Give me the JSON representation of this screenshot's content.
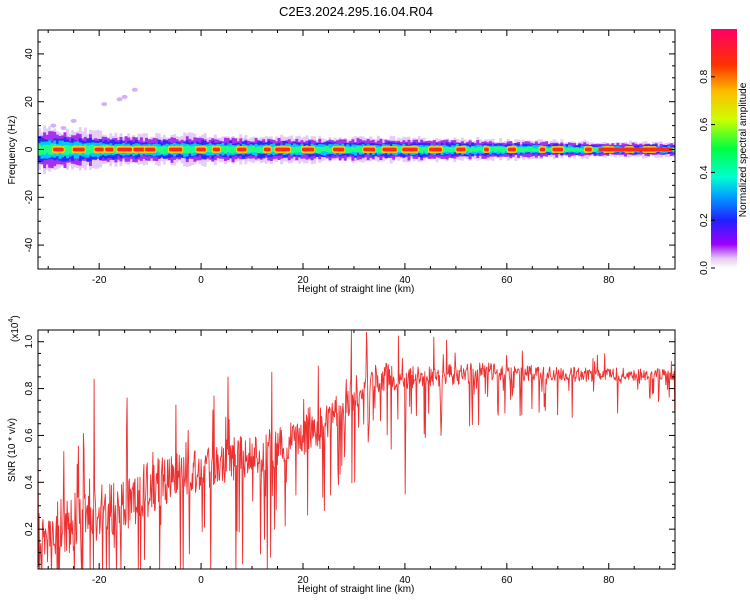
{
  "title": "C2E3.2024.295.16.04.R04",
  "colorbar": {
    "label": "Normalized spectral amplitude",
    "ticks": [
      "0.0",
      "0.2",
      "0.4",
      "0.6",
      "0.8"
    ],
    "tick_values": [
      0.0,
      0.2,
      0.4,
      0.6,
      0.8
    ],
    "range": [
      0,
      1
    ]
  },
  "chart_data": [
    {
      "type": "heatmap",
      "title": "C2E3.2024.295.16.04.R04",
      "xlabel": "Height of straight line (km)",
      "ylabel": "Frequency (Hz)",
      "xlim": [
        -32,
        93
      ],
      "ylim": [
        -50,
        50
      ],
      "xticks": [
        "-20",
        "0",
        "20",
        "40",
        "60",
        "80"
      ],
      "xtick_values": [
        -20,
        0,
        20,
        40,
        60,
        80
      ],
      "yticks": [
        "40",
        "20",
        "0",
        "-20",
        "-40"
      ],
      "ytick_values": [
        40,
        20,
        0,
        -20,
        -40
      ],
      "grid": false,
      "band_center_hz": 0,
      "band_halfwidth_hz": [
        [
          -32,
          4.5
        ],
        [
          -25,
          4
        ],
        [
          -15,
          3
        ],
        [
          0,
          3
        ],
        [
          20,
          2.5
        ],
        [
          40,
          2.5
        ],
        [
          60,
          2
        ],
        [
          80,
          1.5
        ],
        [
          93,
          1.5
        ]
      ],
      "peaks_km": [
        -28,
        -24,
        -20,
        -18,
        -15,
        -12,
        -10,
        -5,
        0,
        3,
        8,
        13,
        16,
        21,
        27,
        33,
        37,
        41,
        46,
        51,
        56,
        61,
        67,
        70,
        76,
        80,
        84,
        88
      ],
      "scatter_features": [
        {
          "x": -29,
          "y": 10
        },
        {
          "x": -27,
          "y": 9
        },
        {
          "x": -25,
          "y": 12
        },
        {
          "x": -19,
          "y": 19
        },
        {
          "x": -16,
          "y": 21
        },
        {
          "x": -15,
          "y": 22
        },
        {
          "x": -13,
          "y": 25
        }
      ]
    },
    {
      "type": "line",
      "xlabel": "Height of straight line (km)",
      "ylabel": "SNR (10 * v/v)",
      "scale_label": "(x10",
      "scale_exponent": "4",
      "xlim": [
        -32,
        93
      ],
      "ylim": [
        0.03,
        1.05
      ],
      "xticks": [
        "-20",
        "0",
        "20",
        "40",
        "60",
        "80"
      ],
      "xtick_values": [
        -20,
        0,
        20,
        40,
        60,
        80
      ],
      "yticks": [
        "0.2",
        "0.4",
        "0.6",
        "0.8",
        "1.0"
      ],
      "ytick_values": [
        0.2,
        0.4,
        0.6,
        0.8,
        1.0
      ],
      "color": "#ee3030",
      "grid": false,
      "baseline": {
        "x": [
          -32,
          -25,
          -20,
          -15,
          -10,
          -5,
          0,
          5,
          10,
          15,
          20,
          25,
          30,
          35,
          40,
          45,
          50,
          55,
          60,
          70,
          80,
          93
        ],
        "y": [
          0.17,
          0.22,
          0.27,
          0.32,
          0.37,
          0.42,
          0.46,
          0.49,
          0.52,
          0.55,
          0.6,
          0.66,
          0.78,
          0.85,
          0.84,
          0.85,
          0.86,
          0.87,
          0.87,
          0.86,
          0.86,
          0.86
        ]
      },
      "noise_amplitude": {
        "x": [
          -32,
          -10,
          0,
          20,
          30,
          40,
          60,
          93
        ],
        "y": [
          0.22,
          0.2,
          0.16,
          0.14,
          0.12,
          0.09,
          0.06,
          0.04
        ]
      },
      "notable_points": [
        {
          "x": -32.0,
          "y": 0.55
        },
        {
          "x": -21.0,
          "y": 0.84
        },
        {
          "x": -14.5,
          "y": 0.76
        },
        {
          "x": 5.3,
          "y": 0.85
        },
        {
          "x": 29.5,
          "y": 1.05
        },
        {
          "x": 32.5,
          "y": 1.04
        },
        {
          "x": 40.0,
          "y": 0.35
        },
        {
          "x": 93.0,
          "y": 0.7
        }
      ]
    }
  ]
}
